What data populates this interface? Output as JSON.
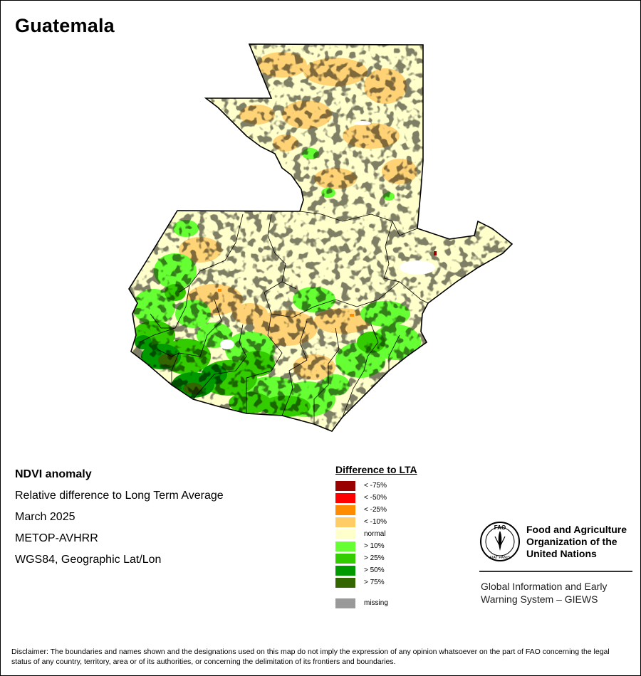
{
  "title": "Guatemala",
  "info": {
    "product": "NDVI anomaly",
    "description": "Relative difference to Long Term Average",
    "period": "March 2025",
    "sensor": "METOP-AVHRR",
    "projection": "WGS84, Geographic Lat/Lon"
  },
  "legend": {
    "title": "Difference to LTA",
    "items": [
      {
        "label": "< -75%",
        "color": "#990000"
      },
      {
        "label": "< -50%",
        "color": "#ff0000"
      },
      {
        "label": "< -25%",
        "color": "#ff8c00"
      },
      {
        "label": "< -10%",
        "color": "#ffcc66"
      },
      {
        "label": "normal",
        "color": "#ffffcc"
      },
      {
        "label": "> 10%",
        "color": "#66ff33"
      },
      {
        "label": "> 25%",
        "color": "#33cc00"
      },
      {
        "label": "> 50%",
        "color": "#009900"
      },
      {
        "label": "> 75%",
        "color": "#336600"
      }
    ],
    "missing": {
      "label": "missing",
      "color": "#999999"
    }
  },
  "organization": {
    "name_lines": [
      "Food and Agriculture",
      "Organization of the",
      "United Nations"
    ],
    "emblem_letters": "FAO",
    "emblem_motto": "FIAT PANIS",
    "system_lines": [
      "Global Information and Early",
      "Warning System – GIEWS"
    ]
  },
  "disclaimer": "Disclaimer: The boundaries and names shown and the designations used on this map do not imply the expression of any opinion whatsoever on the part of FAO concerning the legal status of any country, territory, area or of its authorities, or concerning the delimitation of its frontiers and boundaries.",
  "map_colors": {
    "base": "#ffffcc",
    "border": "#000000",
    "white_patch": "#ffffff"
  }
}
